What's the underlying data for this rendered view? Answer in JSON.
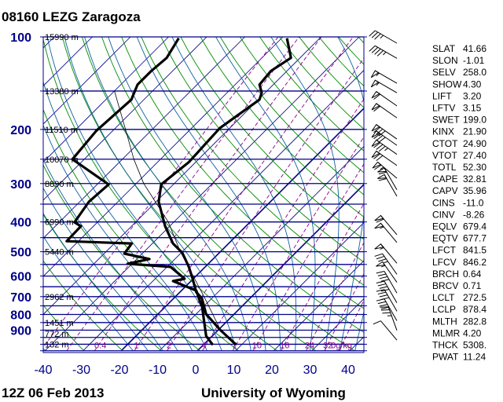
{
  "title": "08160 LEZG Zaragoza",
  "footer": {
    "left": "12Z 06 Feb 2013",
    "right": "University of Wyoming"
  },
  "colors": {
    "isobar": "#00008b",
    "isotherm": "#00008b",
    "dry_adiabat": "#008b00",
    "moist_adiabat": "#1060a0",
    "mixing_ratio": "#8b008b",
    "sounding": "#000000",
    "axis_labels": "#00008b"
  },
  "chart_data": {
    "type": "skew-t",
    "y_axis": {
      "scale": "log",
      "range_hpa": [
        1050,
        100
      ],
      "tick_labels": [
        "100",
        "200",
        "300",
        "400",
        "500",
        "600",
        "700",
        "800",
        "900"
      ],
      "ticks": [
        100,
        200,
        300,
        400,
        500,
        600,
        700,
        800,
        900
      ]
    },
    "x_axis": {
      "range_c": [
        -40,
        45
      ],
      "tick_labels": [
        "-40",
        "-30",
        "-20",
        "-10",
        "0",
        "10",
        "20",
        "30",
        "40"
      ],
      "ticks": [
        -40,
        -30,
        -20,
        -10,
        0,
        10,
        20,
        30,
        40
      ]
    },
    "isobars_hpa": [
      100,
      150,
      200,
      250,
      300,
      350,
      400,
      450,
      500,
      550,
      600,
      650,
      700,
      750,
      800,
      850,
      900,
      950,
      1000,
      1050
    ],
    "heights": [
      {
        "p": 100,
        "label": "15990 m"
      },
      {
        "p": 150,
        "label": "13380 m"
      },
      {
        "p": 200,
        "label": "11510 m"
      },
      {
        "p": 250,
        "label": "10070 m"
      },
      {
        "p": 300,
        "label": "8890 m"
      },
      {
        "p": 400,
        "label": "6990 m"
      },
      {
        "p": 500,
        "label": "5440 m"
      },
      {
        "p": 700,
        "label": "2962 m"
      },
      {
        "p": 850,
        "label": "1451 m"
      },
      {
        "p": 925,
        "label": "772 m"
      },
      {
        "p": 1000,
        "label": "132 m"
      }
    ],
    "mixing_ratio_labels": [
      {
        "w": 0.4,
        "label": "0.4"
      },
      {
        "w": 1,
        "label": "1"
      },
      {
        "w": 2,
        "label": "2"
      },
      {
        "w": 4,
        "label": "4"
      },
      {
        "w": 7,
        "label": "7"
      },
      {
        "w": 10,
        "label": "10"
      },
      {
        "w": 16,
        "label": "16"
      },
      {
        "w": 24,
        "label": "24"
      },
      {
        "w": 32,
        "label": "32"
      }
    ],
    "mixing_ratio_unit": "0g/kg",
    "temperature": [
      [
        1003,
        8.5
      ],
      [
        897,
        0.4
      ],
      [
        797,
        -7.4
      ],
      [
        709,
        -12.6
      ],
      [
        677,
        -15.7
      ],
      [
        612,
        -20.2
      ],
      [
        560,
        -24.3
      ],
      [
        504,
        -29.7
      ],
      [
        470,
        -34.6
      ],
      [
        413,
        -41.2
      ],
      [
        344,
        -49.3
      ],
      [
        302,
        -53.2
      ],
      [
        256,
        -51.8
      ],
      [
        198,
        -52.6
      ],
      [
        160,
        -49.7
      ],
      [
        152,
        -50.9
      ],
      [
        143,
        -53.6
      ],
      [
        129,
        -54.2
      ],
      [
        117,
        -52.4
      ],
      [
        101,
        -58.6
      ]
    ],
    "dewpoint": [
      [
        1005,
        2.5
      ],
      [
        940,
        -1.6
      ],
      [
        797,
        -8.2
      ],
      [
        752,
        -10.5
      ],
      [
        709,
        -13.4
      ],
      [
        669,
        -16.1
      ],
      [
        623,
        -24.7
      ],
      [
        612,
        -22.3
      ],
      [
        560,
        -29.1
      ],
      [
        547,
        -41.2
      ],
      [
        528,
        -36.7
      ],
      [
        507,
        -44.7
      ],
      [
        470,
        -45.4
      ],
      [
        462,
        -63.1
      ],
      [
        413,
        -63.3
      ],
      [
        401,
        -66.0
      ],
      [
        344,
        -67.6
      ],
      [
        302,
        -67.0
      ],
      [
        250,
        -83.1
      ],
      [
        202,
        -84.3
      ],
      [
        160,
        -83.3
      ],
      [
        143,
        -85.6
      ],
      [
        129,
        -85.6
      ],
      [
        117,
        -85.0
      ],
      [
        101,
        -87.0
      ]
    ],
    "parcel_path": [
      [
        878.4,
        -0.6
      ],
      [
        700,
        -12.5
      ],
      [
        500,
        -30.5
      ],
      [
        400,
        -41.5
      ],
      [
        300,
        -58
      ],
      [
        250,
        -67
      ],
      [
        200,
        -77
      ],
      [
        150,
        -90
      ]
    ],
    "winds": [
      {
        "p": 100,
        "dir": 300,
        "kt": 35
      },
      {
        "p": 112,
        "dir": 300,
        "kt": 45
      },
      {
        "p": 135,
        "dir": 300,
        "kt": 55
      },
      {
        "p": 145,
        "dir": 300,
        "kt": 55
      },
      {
        "p": 160,
        "dir": 305,
        "kt": 60
      },
      {
        "p": 175,
        "dir": 305,
        "kt": 60
      },
      {
        "p": 205,
        "dir": 305,
        "kt": 80
      },
      {
        "p": 215,
        "dir": 305,
        "kt": 80
      },
      {
        "p": 230,
        "dir": 305,
        "kt": 85
      },
      {
        "p": 250,
        "dir": 305,
        "kt": 70
      },
      {
        "p": 275,
        "dir": 310,
        "kt": 65
      },
      {
        "p": 300,
        "dir": 330,
        "kt": 60
      },
      {
        "p": 315,
        "dir": 330,
        "kt": 60
      },
      {
        "p": 420,
        "dir": 320,
        "kt": 60
      },
      {
        "p": 445,
        "dir": 320,
        "kt": 55
      },
      {
        "p": 520,
        "dir": 320,
        "kt": 55
      },
      {
        "p": 565,
        "dir": 325,
        "kt": 35
      },
      {
        "p": 600,
        "dir": 325,
        "kt": 55
      },
      {
        "p": 650,
        "dir": 330,
        "kt": 40
      },
      {
        "p": 700,
        "dir": 330,
        "kt": 40
      },
      {
        "p": 745,
        "dir": 330,
        "kt": 40
      },
      {
        "p": 800,
        "dir": 330,
        "kt": 40
      },
      {
        "p": 860,
        "dir": 340,
        "kt": 35
      },
      {
        "p": 925,
        "dir": 320,
        "kt": 10
      }
    ]
  },
  "indices": [
    {
      "name": "SLAT",
      "value": "41.66"
    },
    {
      "name": "SLON",
      "value": "-1.01"
    },
    {
      "name": "SELV",
      "value": "258.0"
    },
    {
      "name": "SHOW",
      "value": "4.30"
    },
    {
      "name": "LIFT",
      "value": "3.20"
    },
    {
      "name": "LFTV",
      "value": "3.15"
    },
    {
      "name": "SWET",
      "value": "199.0"
    },
    {
      "name": "KINX",
      "value": "21.90"
    },
    {
      "name": "CTOT",
      "value": "24.90"
    },
    {
      "name": "VTOT",
      "value": "27.40"
    },
    {
      "name": "TOTL",
      "value": "52.30"
    },
    {
      "name": "CAPE",
      "value": "32.81"
    },
    {
      "name": "CAPV",
      "value": "35.96"
    },
    {
      "name": "CINS",
      "value": "-11.0"
    },
    {
      "name": "CINV",
      "value": "-8.26"
    },
    {
      "name": "EQLV",
      "value": "679.4"
    },
    {
      "name": "EQTV",
      "value": "677.7"
    },
    {
      "name": "LFCT",
      "value": "841.5"
    },
    {
      "name": "LFCV",
      "value": "846.2"
    },
    {
      "name": "BRCH",
      "value": "0.64"
    },
    {
      "name": "BRCV",
      "value": "0.71"
    },
    {
      "name": "LCLT",
      "value": "272.5"
    },
    {
      "name": "LCLP",
      "value": "878.4"
    },
    {
      "name": "MLTH",
      "value": "282.8"
    },
    {
      "name": "MLMR",
      "value": "4.20"
    },
    {
      "name": "THCK",
      "value": "5308."
    },
    {
      "name": "PWAT",
      "value": "11.24"
    }
  ]
}
